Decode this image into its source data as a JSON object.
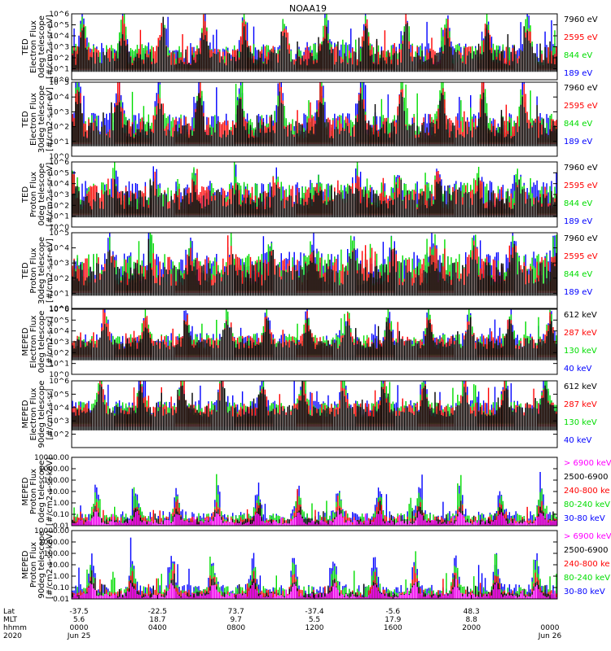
{
  "title": "NOAA19",
  "chart_data": [
    {
      "type": "line",
      "ylabel": [
        "TED",
        "Electron Flux",
        "0deg telescope",
        "[#/cm2-s-sr-eV]"
      ],
      "ylog": true,
      "ylim": [
        1,
        1000000
      ],
      "yticks": [
        "10^0",
        "10^1",
        "10^2",
        "10^3",
        "10^4",
        "10^5",
        "10^6"
      ],
      "baseline": 1.3,
      "amp": 3.4,
      "noise": 0.35,
      "legend": [
        {
          "label": "7960 eV",
          "color": "#000000"
        },
        {
          "label": "2595 eV",
          "color": "#ff0000"
        },
        {
          "label": "844 eV",
          "color": "#00dd00"
        },
        {
          "label": "189 eV",
          "color": "#0000ff"
        }
      ]
    },
    {
      "type": "line",
      "ylabel": [
        "TED",
        "Electron Flux",
        "30deg telescope",
        "[#/cm2-s-sr-eV]"
      ],
      "ylog": true,
      "ylim": [
        1,
        100000
      ],
      "yticks": [
        "10^0",
        "10^1",
        "10^2",
        "10^3",
        "10^4",
        "10^5"
      ],
      "baseline": 1.2,
      "amp": 3.0,
      "noise": 0.35,
      "legend": [
        {
          "label": "7960 eV",
          "color": "#000000"
        },
        {
          "label": "2595 eV",
          "color": "#ff0000"
        },
        {
          "label": "844 eV",
          "color": "#00dd00"
        },
        {
          "label": "189 eV",
          "color": "#0000ff"
        }
      ]
    },
    {
      "type": "line",
      "ylabel": [
        "TED",
        "Proton Flux",
        "0deg telescope",
        "[#/cm2-s-sr-eV]"
      ],
      "ylog": true,
      "ylim": [
        1,
        1000000
      ],
      "yticks": [
        "10^0",
        "10^1",
        "10^2",
        "10^3",
        "10^4",
        "10^5",
        "10^6"
      ],
      "baseline": 1.6,
      "amp": 1.6,
      "noise": 0.45,
      "legend": [
        {
          "label": "7960 eV",
          "color": "#000000"
        },
        {
          "label": "2595 eV",
          "color": "#ff0000"
        },
        {
          "label": "844 eV",
          "color": "#00dd00"
        },
        {
          "label": "189 eV",
          "color": "#0000ff"
        }
      ]
    },
    {
      "type": "line",
      "ylabel": [
        "TED",
        "Proton Flux",
        "30deg telescope",
        "[#/cm2-s-sr-eV]"
      ],
      "ylog": true,
      "ylim": [
        1,
        100000
      ],
      "yticks": [
        "10^0",
        "10^1",
        "10^2",
        "10^3",
        "10^4",
        "10^5"
      ],
      "baseline": 1.5,
      "amp": 1.7,
      "noise": 0.45,
      "legend": [
        {
          "label": "7960 eV",
          "color": "#000000"
        },
        {
          "label": "2595 eV",
          "color": "#ff0000"
        },
        {
          "label": "844 eV",
          "color": "#00dd00"
        },
        {
          "label": "189 eV",
          "color": "#0000ff"
        }
      ]
    },
    {
      "type": "line",
      "ylabel": [
        "MEPED",
        "Electron Flux",
        "0deg telescope",
        "[#/cm2-s-sr]"
      ],
      "ylog": true,
      "ylim": [
        1,
        1000000
      ],
      "yticks": [
        "10^0",
        "10^1",
        "10^2",
        "10^3",
        "10^4",
        "10^5",
        "10^6"
      ],
      "baseline": 2.3,
      "amp": 2.7,
      "noise": 0.25,
      "legend": [
        {
          "label": "612 keV",
          "color": "#000000"
        },
        {
          "label": "287 keV",
          "color": "#ff0000"
        },
        {
          "label": "130 keV",
          "color": "#00dd00"
        },
        {
          "label": "40 keV",
          "color": "#0000ff"
        }
      ]
    },
    {
      "type": "line",
      "ylabel": [
        "MEPED",
        "Electron Flux",
        "90deg telescope",
        "[#/cm2-s-sr]"
      ],
      "ylog": true,
      "ylim": [
        10,
        1000000
      ],
      "yticks": [
        "",
        "10^2",
        "10^3",
        "10^4",
        "10^5",
        "10^6"
      ],
      "baseline": 2.3,
      "amp": 2.4,
      "noise": 0.25,
      "legend": [
        {
          "label": "612 keV",
          "color": "#000000"
        },
        {
          "label": "287 keV",
          "color": "#ff0000"
        },
        {
          "label": "130 keV",
          "color": "#00dd00"
        },
        {
          "label": "40 keV",
          "color": "#0000ff"
        }
      ]
    },
    {
      "type": "line",
      "ylabel": [
        "MEPED",
        "Proton Flux",
        "0deg telescope",
        "[#/cm2-s-sr-keV]"
      ],
      "ylog": true,
      "ylim": [
        0.01,
        10000
      ],
      "yticks": [
        "0.01",
        "0.10",
        "1.00",
        "10.00",
        "100.00",
        "1000.00",
        "10000.00"
      ],
      "baseline": 0.1,
      "amp": 2.6,
      "noise": 0.2,
      "legend": [
        {
          "label": "> 6900 keV",
          "color": "#ff00ff"
        },
        {
          "label": "2500-6900",
          "color": "#000000"
        },
        {
          "label": "240-800 ke",
          "color": "#ff0000"
        },
        {
          "label": "80-240 keV",
          "color": "#00dd00"
        },
        {
          "label": "30-80 keV",
          "color": "#0000ff"
        }
      ]
    },
    {
      "type": "line",
      "ylabel": [
        "MEPED",
        "Proton Flux",
        "90deg telescope",
        "[#/cm2-s-sr-keV]"
      ],
      "ylog": true,
      "ylim": [
        0.01,
        10000
      ],
      "yticks": [
        "0.01",
        "0.10",
        "1.00",
        "10.00",
        "100.00",
        "1000.00",
        "10000.00"
      ],
      "baseline": 0.1,
      "amp": 2.8,
      "noise": 0.2,
      "legend": [
        {
          "label": "> 6900 keV",
          "color": "#ff00ff"
        },
        {
          "label": "2500-6900",
          "color": "#000000"
        },
        {
          "label": "240-800 ke",
          "color": "#ff0000"
        },
        {
          "label": "80-240 keV",
          "color": "#00dd00"
        },
        {
          "label": "30-80 keV",
          "color": "#0000ff"
        }
      ]
    }
  ],
  "xaxis": {
    "row_labels": [
      "Lat",
      "MLT",
      "hhmm",
      "2020"
    ],
    "ticks": [
      {
        "lat": "-37.5",
        "mlt": "5.6",
        "time": "0000",
        "date": "Jun 25"
      },
      {
        "lat": "-22.5",
        "mlt": "18.7",
        "time": "0400",
        "date": ""
      },
      {
        "lat": "73.7",
        "mlt": "9.7",
        "time": "0800",
        "date": ""
      },
      {
        "lat": "-37.4",
        "mlt": "5.5",
        "time": "1200",
        "date": ""
      },
      {
        "lat": "-5.6",
        "mlt": "17.9",
        "time": "1600",
        "date": ""
      },
      {
        "lat": "48.3",
        "mlt": "8.8",
        "time": "2000",
        "date": ""
      },
      {
        "lat": "",
        "mlt": "",
        "time": "0000",
        "date": "Jun 26"
      }
    ]
  }
}
